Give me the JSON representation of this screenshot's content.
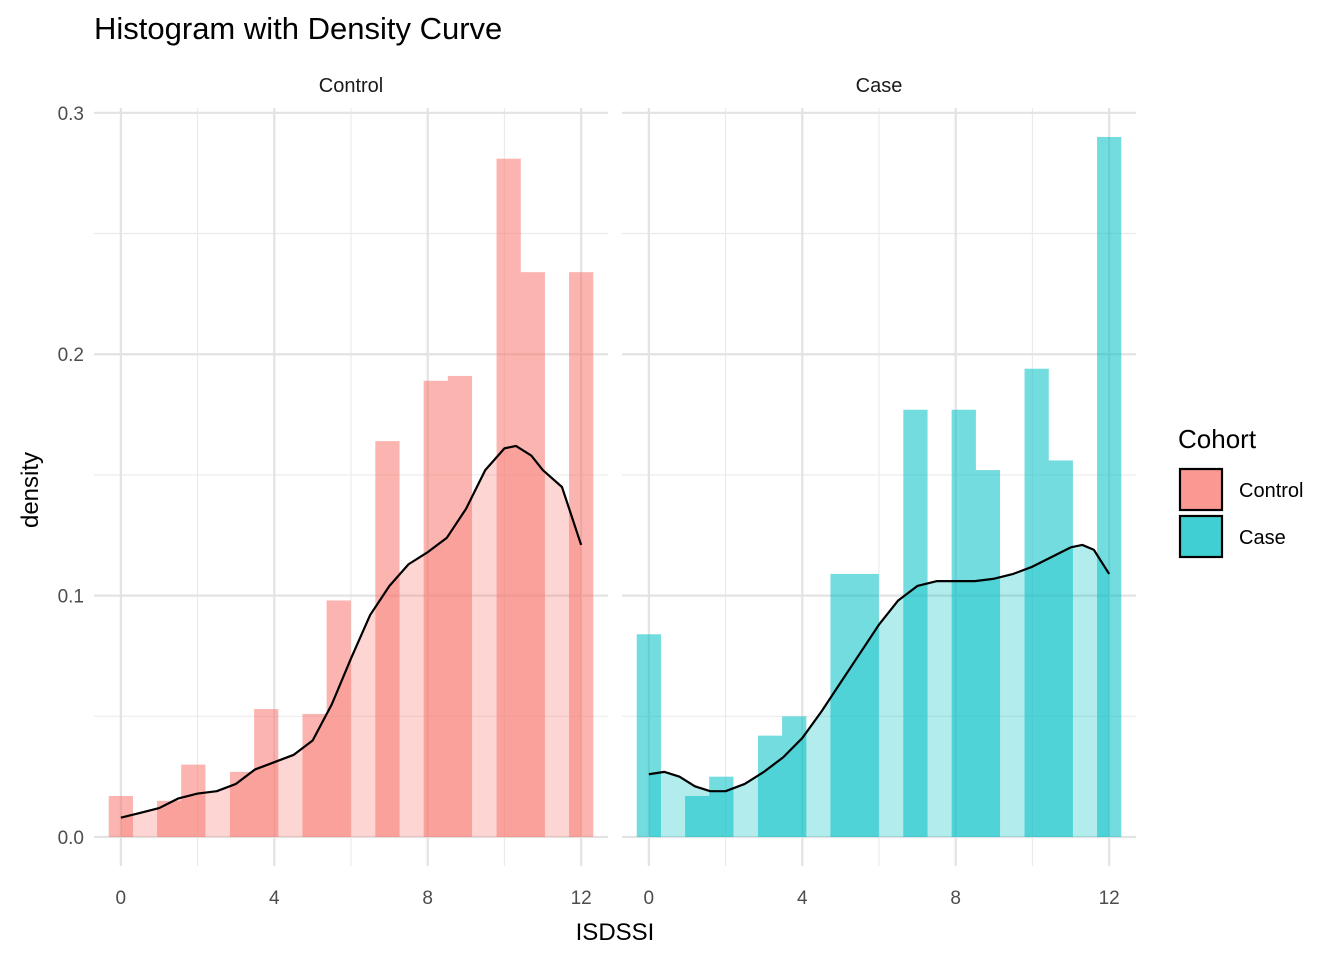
{
  "chart_data": {
    "type": "bar",
    "title": "Histogram with Density Curve",
    "xlabel": "ISDSSI",
    "ylabel": "density",
    "xlim": [
      -0.7,
      12.7
    ],
    "ylim": [
      -0.012,
      0.302
    ],
    "x_ticks": [
      0,
      4,
      8,
      12
    ],
    "y_ticks": [
      0.0,
      0.1,
      0.2,
      0.3
    ],
    "y_tick_labels": [
      "0.0",
      "0.1",
      "0.2",
      "0.3"
    ],
    "grid": true,
    "legend": {
      "title": "Cohort",
      "placement": "right",
      "entries": [
        {
          "label": "Control",
          "color": "#F8766D"
        },
        {
          "label": "Case",
          "color": "#00BFC4"
        }
      ]
    },
    "bin_width": 0.632,
    "panels": [
      {
        "name": "Control",
        "color": "#F8766D",
        "bins": [
          {
            "x": 0.0,
            "density": 0.017
          },
          {
            "x": 0.63,
            "density": 0.0
          },
          {
            "x": 1.26,
            "density": 0.015
          },
          {
            "x": 1.89,
            "density": 0.03
          },
          {
            "x": 2.53,
            "density": 0.0
          },
          {
            "x": 3.16,
            "density": 0.027
          },
          {
            "x": 3.79,
            "density": 0.053
          },
          {
            "x": 4.42,
            "density": 0.0
          },
          {
            "x": 5.05,
            "density": 0.051
          },
          {
            "x": 5.68,
            "density": 0.098
          },
          {
            "x": 6.32,
            "density": 0.0
          },
          {
            "x": 6.95,
            "density": 0.164
          },
          {
            "x": 7.58,
            "density": 0.0
          },
          {
            "x": 8.21,
            "density": 0.189
          },
          {
            "x": 8.84,
            "density": 0.191
          },
          {
            "x": 9.47,
            "density": 0.0
          },
          {
            "x": 10.11,
            "density": 0.281
          },
          {
            "x": 10.74,
            "density": 0.234
          },
          {
            "x": 11.37,
            "density": 0.0
          },
          {
            "x": 12.0,
            "density": 0.234
          }
        ],
        "density_curve": {
          "x": [
            0.0,
            0.5,
            1.0,
            1.5,
            2.0,
            2.5,
            3.0,
            3.5,
            4.0,
            4.5,
            5.0,
            5.5,
            6.0,
            6.5,
            7.0,
            7.5,
            8.0,
            8.5,
            9.0,
            9.5,
            10.0,
            10.3,
            10.7,
            11.0,
            11.5,
            12.0
          ],
          "y": [
            0.008,
            0.01,
            0.012,
            0.016,
            0.018,
            0.019,
            0.022,
            0.028,
            0.031,
            0.034,
            0.04,
            0.055,
            0.074,
            0.092,
            0.104,
            0.113,
            0.118,
            0.124,
            0.136,
            0.152,
            0.161,
            0.162,
            0.158,
            0.152,
            0.145,
            0.121
          ]
        }
      },
      {
        "name": "Case",
        "color": "#00BFC4",
        "bins": [
          {
            "x": 0.0,
            "density": 0.084
          },
          {
            "x": 0.63,
            "density": 0.0
          },
          {
            "x": 1.26,
            "density": 0.017
          },
          {
            "x": 1.89,
            "density": 0.025
          },
          {
            "x": 2.53,
            "density": 0.0
          },
          {
            "x": 3.16,
            "density": 0.042
          },
          {
            "x": 3.79,
            "density": 0.05
          },
          {
            "x": 4.42,
            "density": 0.0
          },
          {
            "x": 5.05,
            "density": 0.109
          },
          {
            "x": 5.68,
            "density": 0.109
          },
          {
            "x": 6.32,
            "density": 0.0
          },
          {
            "x": 6.95,
            "density": 0.177
          },
          {
            "x": 7.58,
            "density": 0.0
          },
          {
            "x": 8.21,
            "density": 0.177
          },
          {
            "x": 8.84,
            "density": 0.152
          },
          {
            "x": 9.47,
            "density": 0.0
          },
          {
            "x": 10.11,
            "density": 0.194
          },
          {
            "x": 10.74,
            "density": 0.156
          },
          {
            "x": 11.37,
            "density": 0.0
          },
          {
            "x": 12.0,
            "density": 0.29
          }
        ],
        "density_curve": {
          "x": [
            0.0,
            0.4,
            0.8,
            1.2,
            1.6,
            2.0,
            2.5,
            3.0,
            3.5,
            4.0,
            4.5,
            5.0,
            5.5,
            6.0,
            6.5,
            7.0,
            7.5,
            8.0,
            8.5,
            9.0,
            9.5,
            10.0,
            10.5,
            11.0,
            11.3,
            11.6,
            12.0
          ],
          "y": [
            0.026,
            0.027,
            0.025,
            0.021,
            0.019,
            0.019,
            0.022,
            0.027,
            0.033,
            0.041,
            0.052,
            0.064,
            0.076,
            0.088,
            0.098,
            0.104,
            0.106,
            0.106,
            0.106,
            0.107,
            0.109,
            0.112,
            0.116,
            0.12,
            0.121,
            0.119,
            0.109
          ]
        }
      }
    ]
  }
}
